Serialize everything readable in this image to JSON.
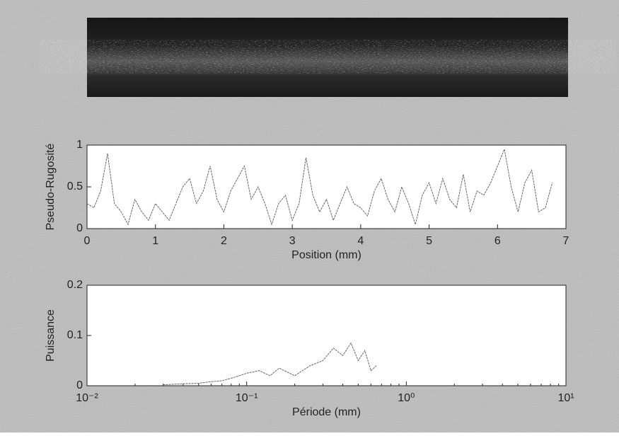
{
  "chart_data": [
    {
      "type": "line",
      "ylabel": "Pseudo-Rugosité",
      "xlabel": "Position (mm)",
      "x": [
        0,
        0.1,
        0.2,
        0.3,
        0.4,
        0.5,
        0.6,
        0.7,
        0.8,
        0.9,
        1,
        1.1,
        1.2,
        1.3,
        1.4,
        1.5,
        1.6,
        1.7,
        1.8,
        1.9,
        2,
        2.1,
        2.2,
        2.3,
        2.4,
        2.5,
        2.6,
        2.7,
        2.8,
        2.9,
        3,
        3.1,
        3.2,
        3.3,
        3.4,
        3.5,
        3.6,
        3.7,
        3.8,
        3.9,
        4,
        4.1,
        4.2,
        4.3,
        4.4,
        4.5,
        4.6,
        4.7,
        4.8,
        4.9,
        5,
        5.1,
        5.2,
        5.3,
        5.4,
        5.5,
        5.6,
        5.7,
        5.8,
        5.9,
        6,
        6.1,
        6.2,
        6.3,
        6.4,
        6.5,
        6.6,
        6.7,
        6.8
      ],
      "values": [
        0.3,
        0.25,
        0.45,
        0.9,
        0.3,
        0.2,
        0.05,
        0.35,
        0.2,
        0.1,
        0.3,
        0.2,
        0.1,
        0.3,
        0.5,
        0.6,
        0.3,
        0.45,
        0.75,
        0.35,
        0.2,
        0.45,
        0.6,
        0.75,
        0.35,
        0.5,
        0.3,
        0.05,
        0.3,
        0.4,
        0.1,
        0.3,
        0.85,
        0.4,
        0.2,
        0.35,
        0.1,
        0.3,
        0.5,
        0.3,
        0.25,
        0.15,
        0.45,
        0.6,
        0.35,
        0.2,
        0.5,
        0.3,
        0.05,
        0.4,
        0.55,
        0.3,
        0.6,
        0.35,
        0.25,
        0.65,
        0.2,
        0.45,
        0.4,
        0.55,
        0.75,
        0.95,
        0.5,
        0.2,
        0.55,
        0.7,
        0.2,
        0.25,
        0.55
      ],
      "color": "#666666",
      "xlim": [
        0,
        7
      ],
      "xticks": [
        0,
        1,
        2,
        3,
        4,
        5,
        6,
        7
      ],
      "ylim": [
        0,
        1
      ],
      "yticks": [
        0,
        0.5,
        1
      ]
    },
    {
      "type": "line",
      "ylabel": "Puissance",
      "xlabel": "Période (mm)",
      "xscale": "log",
      "x": [
        0.03,
        0.04,
        0.05,
        0.06,
        0.07,
        0.08,
        0.09,
        0.1,
        0.12,
        0.14,
        0.16,
        0.2,
        0.25,
        0.3,
        0.35,
        0.4,
        0.45,
        0.5,
        0.55,
        0.6,
        0.65
      ],
      "values": [
        0.002,
        0.004,
        0.005,
        0.008,
        0.01,
        0.015,
        0.02,
        0.025,
        0.03,
        0.02,
        0.035,
        0.02,
        0.04,
        0.05,
        0.075,
        0.06,
        0.085,
        0.05,
        0.07,
        0.03,
        0.04
      ],
      "color": "#666666",
      "xlim": [
        0.01,
        10
      ],
      "xticks": [
        {
          "value": 0.01,
          "label": "10⁻²"
        },
        {
          "value": 0.1,
          "label": "10⁻¹"
        },
        {
          "value": 1,
          "label": "10⁰"
        },
        {
          "value": 10,
          "label": "10¹"
        }
      ],
      "ylim": [
        0,
        0.2
      ],
      "yticks": [
        0,
        0.1,
        0.2
      ]
    }
  ]
}
